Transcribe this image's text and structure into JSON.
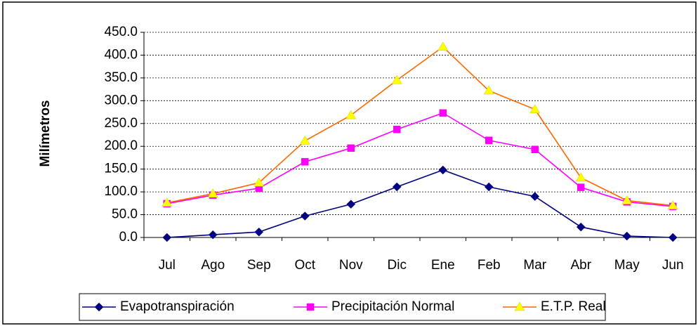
{
  "chart_data": {
    "type": "line",
    "y_label": "Milímetros",
    "categories": [
      "Jul",
      "Ago",
      "Sep",
      "Oct",
      "Nov",
      "Dic",
      "Ene",
      "Feb",
      "Mar",
      "Abr",
      "May",
      "Jun"
    ],
    "series": [
      {
        "name": "Evapotranspiración",
        "color": "#000080",
        "marker": "diamond",
        "marker_color": "#000080",
        "values": [
          0,
          6,
          12,
          47,
          73,
          111,
          148,
          111,
          90,
          23,
          3,
          0
        ]
      },
      {
        "name": "Precipitación Normal",
        "color": "#ff00ff",
        "marker": "square",
        "marker_color": "#ff00ff",
        "values": [
          74,
          93,
          108,
          166,
          196,
          237,
          273,
          213,
          193,
          110,
          78,
          68
        ]
      },
      {
        "name": "E.T.P. Real",
        "color": "#ff6600",
        "marker": "triangle",
        "marker_color": "#ffff00",
        "values": [
          76,
          96,
          120,
          212,
          268,
          345,
          418,
          322,
          281,
          131,
          81,
          70
        ]
      }
    ],
    "ylim": [
      0,
      450
    ],
    "yticks": [
      {
        "value": 0,
        "label": "0.0"
      },
      {
        "value": 50,
        "label": "50.0"
      },
      {
        "value": 100,
        "label": "100.0"
      },
      {
        "value": 150,
        "label": "150.0"
      },
      {
        "value": 200,
        "label": "200.0"
      },
      {
        "value": 250,
        "label": "250.0"
      },
      {
        "value": 300,
        "label": "300.0"
      },
      {
        "value": 350,
        "label": "350.0"
      },
      {
        "value": 400,
        "label": "400.0"
      },
      {
        "value": 450,
        "label": "450.0"
      }
    ],
    "grid": true,
    "legend": "bottom"
  }
}
